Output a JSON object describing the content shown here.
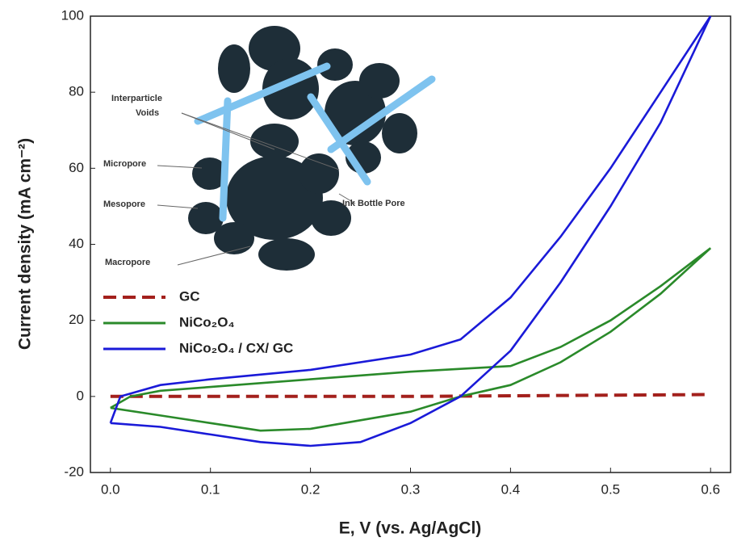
{
  "chart_data": {
    "type": "line",
    "xlabel": "E, V (vs. Ag/AgCl)",
    "ylabel": "Current density (mA cm⁻²)",
    "xlim": [
      -0.02,
      0.62
    ],
    "ylim": [
      -20,
      100
    ],
    "xticks": [
      {
        "value": 0,
        "label": "0.0"
      },
      0.1,
      0.2,
      0.3,
      0.4,
      0.5,
      0.6
    ],
    "yticks": [
      -20,
      0,
      20,
      40,
      60,
      80,
      100
    ],
    "legend": "left",
    "annotations": [
      "Interparticle",
      "Voids",
      "Micropore",
      "Mesopore",
      "Macropore",
      "Ink Bottle Pore"
    ],
    "series": [
      {
        "name": "GC",
        "color": "#a3201c",
        "dash": true,
        "x": [
          0,
          0.3,
          0.6
        ],
        "values": [
          0,
          0,
          0.5
        ]
      },
      {
        "name": "NiCo₂O₄",
        "color": "#2a8a2a",
        "dash": false,
        "x": [
          0,
          0.02,
          0.05,
          0.1,
          0.2,
          0.3,
          0.4,
          0.45,
          0.5,
          0.55,
          0.6,
          0.55,
          0.5,
          0.45,
          0.4,
          0.35,
          0.3,
          0.2,
          0.15,
          0.1,
          0.05,
          0
        ],
        "values": [
          -3,
          0,
          1.5,
          2.5,
          4.5,
          6.5,
          8,
          13,
          20,
          29,
          39,
          27,
          17,
          9,
          3,
          0,
          -4,
          -8.5,
          -9,
          -7,
          -5,
          -3
        ]
      },
      {
        "name": "NiCo₂O₄ / CX/ GC",
        "color": "#1a1ad8",
        "dash": false,
        "x": [
          0,
          0.01,
          0.05,
          0.1,
          0.2,
          0.3,
          0.35,
          0.4,
          0.45,
          0.5,
          0.55,
          0.6,
          0.55,
          0.5,
          0.45,
          0.4,
          0.35,
          0.3,
          0.25,
          0.2,
          0.15,
          0.1,
          0.05,
          0
        ],
        "values": [
          -7,
          0,
          3,
          4.5,
          7,
          11,
          15,
          26,
          42,
          60,
          80,
          100,
          72,
          50,
          30,
          12,
          0,
          -7,
          -12,
          -13,
          -12,
          -10,
          -8,
          -7
        ]
      }
    ]
  }
}
